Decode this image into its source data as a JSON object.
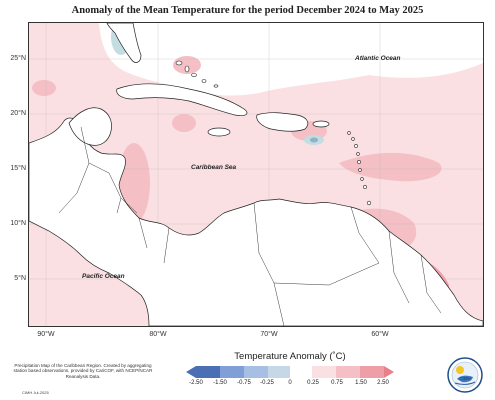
{
  "title": "Anomaly of the Mean Temperature for the period December 2024 to May 2025",
  "map": {
    "lat_labels": [
      "25°N",
      "20°N",
      "15°N",
      "10°N",
      "5°N"
    ],
    "lon_labels": [
      "90°W",
      "80°W",
      "70°W",
      "60°W"
    ],
    "ocean_labels": {
      "atlantic": "Atlantic Ocean",
      "caribbean": "Caribbean Sea",
      "pacific": "Pacific Ocean"
    },
    "colors": {
      "light_warm": "#fbe0e3",
      "mid_warm": "#f4bfc5",
      "strong_warm": "#ee9ea6",
      "light_cool": "#c3dde3",
      "cool": "#8fb3c4",
      "land": "#ffffff",
      "border": "#222222"
    }
  },
  "legend": {
    "title": "Temperature Anomaly (˚C)",
    "ticks": [
      "-2.50",
      "-1.50",
      "-0.75",
      "-0.25",
      "0",
      "0.25",
      "0.75",
      "1.50",
      "2.50"
    ],
    "colors": [
      "#4a6fb5",
      "#7f9fd6",
      "#a6bfe3",
      "#c6d8e8",
      "#ffffff",
      "#fbe0e3",
      "#f4bfc5",
      "#ee9ea6",
      "#e97f89"
    ]
  },
  "footnote": "Precipitation Map of the Caribbean Region. Created by aggregating station based observations, provided by CariCOF, with NCEP/NCAR Reanalysis Data.",
  "footnote_small": "CIMH Jul-2025",
  "logo": {
    "label": "CIMH",
    "icon": "cimh-logo-icon"
  }
}
